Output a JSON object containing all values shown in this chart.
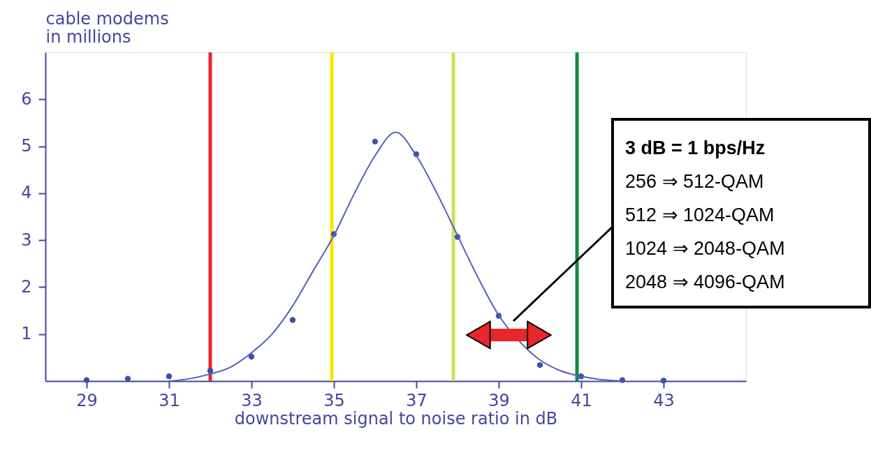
{
  "chart_data": {
    "type": "scatter",
    "xlabel": "downstream signal to noise ratio in dB",
    "ylabel": "cable modems in millions",
    "xlim": [
      28,
      45
    ],
    "ylim": [
      0,
      7
    ],
    "xticks": [
      29,
      31,
      33,
      35,
      37,
      39,
      41,
      43
    ],
    "yticks": [
      1,
      2,
      3,
      4,
      5,
      6
    ],
    "grid": false,
    "series": [
      {
        "marker": "circle",
        "color": "#3d4fb3",
        "x": [
          29,
          30,
          31,
          32,
          33,
          34,
          35,
          36,
          37,
          38,
          39,
          40,
          41,
          42,
          43
        ],
        "values": [
          0.02,
          0.05,
          0.1,
          0.22,
          0.52,
          1.3,
          3.13,
          5.1,
          4.83,
          3.07,
          1.39,
          0.34,
          0.1,
          0.02,
          0.01
        ]
      },
      {
        "type": "line",
        "marker": "none",
        "color": "#5560b8",
        "x": [
          31,
          31.5,
          32,
          32.5,
          33,
          33.5,
          34,
          34.5,
          35,
          35.5,
          36,
          36.5,
          37,
          37.5,
          38,
          38.5,
          39,
          39.5,
          40,
          40.5,
          41,
          41.5,
          42
        ],
        "values": [
          0,
          0.05,
          0.15,
          0.3,
          0.6,
          1.0,
          1.6,
          2.35,
          3.1,
          4.0,
          4.8,
          5.3,
          4.8,
          4.0,
          3.1,
          2.2,
          1.4,
          0.85,
          0.45,
          0.22,
          0.1,
          0.03,
          0
        ]
      }
    ],
    "ref_lines": [
      {
        "axis": "x",
        "value": 32.0,
        "color": "#e8262b"
      },
      {
        "axis": "x",
        "value": 34.95,
        "color": "#f5e800"
      },
      {
        "axis": "x",
        "value": 37.9,
        "color": "#cde05a"
      },
      {
        "axis": "x",
        "value": 40.9,
        "color": "#178a3a"
      }
    ],
    "annotations": [
      "3 dB = 1 bps/Hz",
      "256 ⇒ 512-QAM",
      "512 ⇒ 1024-QAM",
      "1024 ⇒ 2048-QAM",
      "2048 ⇒ 4096-QAM"
    ]
  }
}
